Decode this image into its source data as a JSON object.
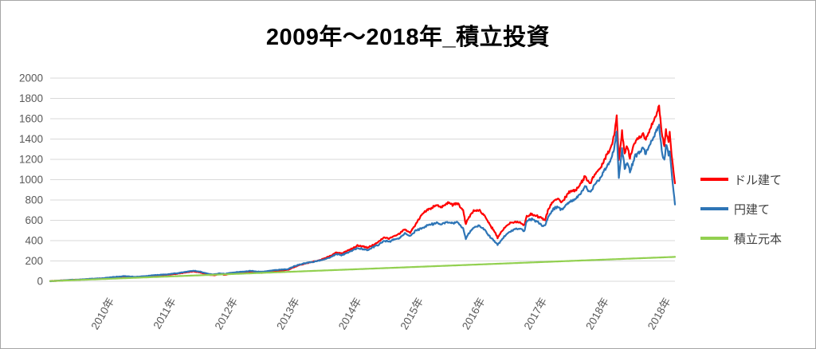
{
  "chart_data": {
    "type": "line",
    "title": "2009年〜2018年_積立投資",
    "xlabel": "",
    "ylabel": "",
    "ylim": [
      0,
      2000
    ],
    "y_ticks": [
      0,
      200,
      400,
      600,
      800,
      1000,
      1200,
      1400,
      1600,
      1800,
      2000
    ],
    "x_tick_labels": [
      "2010年",
      "2011年",
      "2012年",
      "2013年",
      "2014年",
      "2015年",
      "2016年",
      "2017年",
      "2018年",
      "2018年"
    ],
    "grid": "horizontal",
    "grid_color": "#D9D9D9",
    "tick_label_color": "#595959",
    "border_color": "#A6A6A6",
    "background": "#FFFFFF",
    "legend_position": "right",
    "x": [
      0,
      2,
      4,
      6,
      8,
      10,
      12,
      14,
      16,
      18,
      20,
      22,
      24,
      26,
      27,
      28,
      29,
      30,
      31,
      32,
      33,
      34,
      36,
      38,
      39,
      40,
      42,
      44,
      45,
      46,
      47,
      48,
      49,
      50,
      51,
      52,
      53,
      54,
      55,
      56,
      57,
      58,
      59,
      60,
      61,
      62,
      63,
      64,
      65,
      66,
      67,
      68,
      69,
      70,
      71,
      72,
      73,
      74,
      75,
      76,
      77,
      78,
      78.5,
      79,
      80,
      81,
      82,
      83,
      84,
      84.5,
      85,
      86,
      87,
      88,
      89,
      89.5,
      90,
      91,
      92,
      93,
      93.5,
      94,
      95,
      96,
      96.5,
      97,
      98,
      99,
      100,
      101,
      102,
      103,
      104,
      105,
      106,
      106.5,
      107,
      107.4,
      108,
      108.5,
      109,
      109.5,
      110,
      110.5,
      111,
      112,
      112.5,
      113,
      114,
      115,
      115.5,
      116,
      116.3,
      116.8,
      117,
      117.5,
      118
    ],
    "series": [
      {
        "name": "ドル建て",
        "color": "#FF0000",
        "line_style": "noisy",
        "values": [
          2,
          7,
          13,
          17,
          23,
          28,
          38,
          46,
          38,
          46,
          56,
          63,
          74,
          90,
          96,
          90,
          78,
          64,
          60,
          71,
          64,
          75,
          86,
          95,
          87,
          84,
          99,
          107,
          113,
          138,
          158,
          172,
          185,
          196,
          210,
          228,
          250,
          285,
          272,
          295,
          320,
          350,
          343,
          330,
          360,
          385,
          430,
          420,
          445,
          470,
          510,
          480,
          560,
          640,
          700,
          720,
          745,
          730,
          770,
          755,
          765,
          700,
          560,
          625,
          690,
          700,
          650,
          560,
          480,
          430,
          470,
          540,
          575,
          590,
          575,
          545,
          643,
          660,
          640,
          615,
          600,
          700,
          790,
          815,
          780,
          800,
          875,
          890,
          940,
          1035,
          970,
          1060,
          1120,
          1230,
          1330,
          1430,
          1630,
          1192,
          1467,
          1255,
          1330,
          1216,
          1300,
          1365,
          1400,
          1443,
          1390,
          1470,
          1569,
          1717,
          1450,
          1333,
          1490,
          1380,
          1455,
          1180,
          965
        ]
      },
      {
        "name": "円建て",
        "color": "#2E75B6",
        "line_style": "noisy",
        "values": [
          2,
          7,
          14,
          18,
          25,
          30,
          42,
          50,
          43,
          51,
          61,
          68,
          80,
          97,
          103,
          98,
          85,
          72,
          68,
          78,
          72,
          83,
          93,
          103,
          95,
          93,
          108,
          116,
          121,
          145,
          163,
          176,
          186,
          194,
          205,
          220,
          238,
          268,
          258,
          278,
          300,
          326,
          318,
          308,
          335,
          358,
          400,
          390,
          412,
          430,
          468,
          445,
          500,
          515,
          545,
          560,
          575,
          560,
          585,
          570,
          580,
          520,
          415,
          470,
          525,
          545,
          510,
          440,
          390,
          360,
          390,
          455,
          495,
          520,
          515,
          487,
          596,
          610,
          585,
          550,
          545,
          630,
          715,
          735,
          705,
          720,
          785,
          800,
          855,
          930,
          880,
          960,
          1020,
          1120,
          1210,
          1300,
          1470,
          1020,
          1300,
          1114,
          1180,
          1075,
          1160,
          1231,
          1260,
          1310,
          1260,
          1330,
          1427,
          1530,
          1290,
          1176,
          1349,
          1240,
          1300,
          1000,
          755
        ]
      },
      {
        "name": "積立元本",
        "color": "#92D050",
        "line_style": "smooth",
        "x": [
          0,
          118
        ],
        "values": [
          2,
          240
        ]
      }
    ]
  }
}
